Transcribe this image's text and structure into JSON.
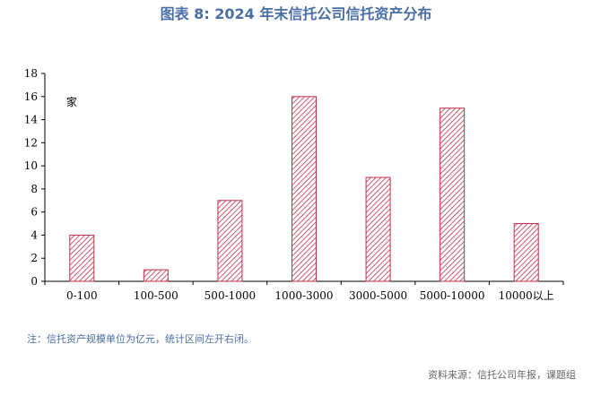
{
  "header": {
    "title": "图表 8: 2024 年末信托公司信托资产分布"
  },
  "footer": {
    "note": "注：信托资产规模单位为亿元，统计区间左开右闭。",
    "source": "资料来源：信托公司年报，课题组"
  },
  "colors": {
    "accent": "#4a6fa5",
    "bar": "#c0304a"
  },
  "chart_data": {
    "type": "bar",
    "title": "",
    "xlabel": "",
    "ylabel": "家",
    "categories": [
      "0-100",
      "100-500",
      "500-1000",
      "1000-3000",
      "3000-5000",
      "5000-10000",
      "10000以上"
    ],
    "values": [
      4,
      1,
      7,
      16,
      9,
      15,
      5
    ],
    "ylim": [
      0,
      18
    ],
    "yticks": [
      0,
      2,
      4,
      6,
      8,
      10,
      12,
      14,
      16,
      18
    ],
    "grid": false,
    "legend": "none"
  }
}
